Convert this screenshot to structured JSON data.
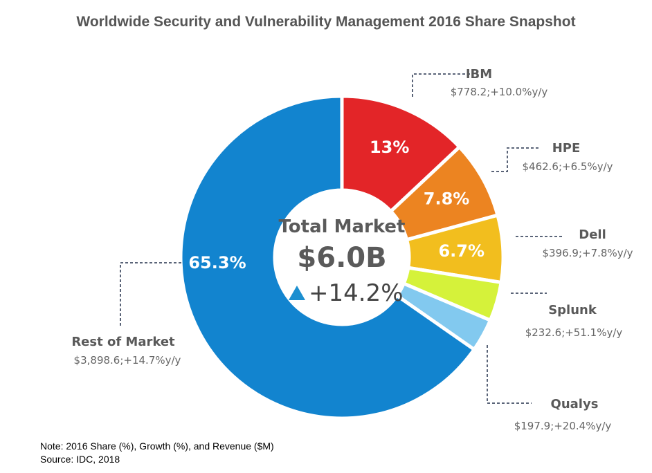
{
  "chart_data": {
    "type": "pie",
    "title": "Worldwide Security and Vulnerability Management 2016 Share Snapshot",
    "center": {
      "label": "Total Market",
      "value": "$6.0B",
      "growth": "+14.2%"
    },
    "slices": [
      {
        "name": "IBM",
        "share": 13.0,
        "share_label": "13%",
        "revenue_label": "$778.2;+10.0%y/y",
        "color": "#e32528"
      },
      {
        "name": "HPE",
        "share": 7.8,
        "share_label": "7.8%",
        "revenue_label": "$462.6;+6.5%y/y",
        "color": "#ec8421"
      },
      {
        "name": "Dell",
        "share": 6.7,
        "share_label": "6.7%",
        "revenue_label": "$396.9;+7.8%y/y",
        "color": "#f2be1e"
      },
      {
        "name": "Splunk",
        "share": 3.9,
        "share_label": "",
        "revenue_label": "$232.6;+51.1%y/y",
        "color": "#d5f23a"
      },
      {
        "name": "Qualys",
        "share": 3.3,
        "share_label": "",
        "revenue_label": "$197.9;+20.4%y/y",
        "color": "#82c9ef"
      },
      {
        "name": "Rest of Market",
        "share": 65.3,
        "share_label": "65.3%",
        "revenue_label": "$3,898.6;+14.7%y/y",
        "color": "#1284cf"
      }
    ]
  },
  "notes": {
    "note": "Note: 2016 Share (%), Growth (%), and Revenue ($M)",
    "source": "Source: IDC, 2018"
  },
  "colors": {
    "growth_arrow": "#1c8fd0"
  }
}
